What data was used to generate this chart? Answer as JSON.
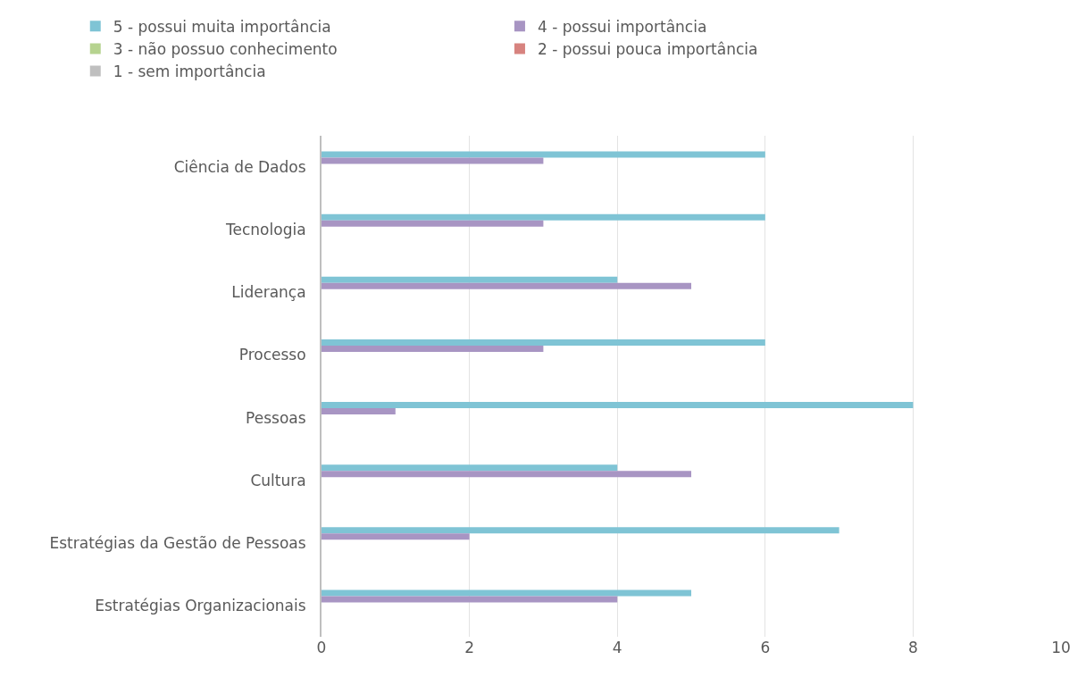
{
  "chart_data": {
    "type": "bar",
    "orientation": "horizontal",
    "categories": [
      "Ciência de Dados",
      "Tecnologia",
      "Liderança",
      "Processo",
      "Pessoas",
      "Cultura",
      "Estratégias da Gestão de Pessoas",
      "Estratégias Organizacionais"
    ],
    "series": [
      {
        "name": "5 - possui muita importância",
        "color": "#7fc4d5",
        "values": [
          6,
          6,
          4,
          6,
          8,
          4,
          7,
          5
        ]
      },
      {
        "name": "4 - possui importância",
        "color": "#a895c3",
        "values": [
          3,
          3,
          5,
          3,
          1,
          5,
          2,
          4
        ]
      },
      {
        "name": "3 - não possuo conhecimento",
        "color": "#b6d38f",
        "values": [
          0,
          0,
          0,
          0,
          0,
          0,
          0,
          0
        ]
      },
      {
        "name": "2 - possui pouca importância",
        "color": "#d7837f",
        "values": [
          0,
          0,
          0,
          0,
          0,
          0,
          0,
          0
        ]
      },
      {
        "name": "1 - sem importância",
        "color": "#bfbfbf",
        "values": [
          0,
          0,
          0,
          0,
          0,
          0,
          0,
          0
        ]
      }
    ],
    "xlim": [
      0,
      10
    ],
    "xticks": [
      0,
      2,
      4,
      6,
      8,
      10
    ],
    "grid": "x",
    "legend": "top"
  }
}
